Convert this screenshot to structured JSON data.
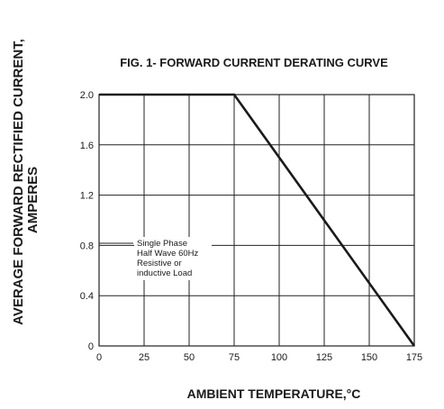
{
  "chart_data": {
    "type": "line",
    "title": "FIG. 1- FORWARD CURRENT DERATING CURVE",
    "xlabel": "AMBIENT TEMPERATURE,°C",
    "ylabel_lines": [
      "AVERAGE FORWARD RECTIFIED CURRENT,",
      "AMPERES"
    ],
    "xlim": [
      0,
      175
    ],
    "ylim": [
      0,
      2.0
    ],
    "x_ticks": [
      0,
      25,
      50,
      75,
      100,
      125,
      150,
      175
    ],
    "y_ticks": [
      0,
      0.4,
      0.8,
      1.2,
      1.6,
      2.0
    ],
    "x_tick_labels": [
      "0",
      "25",
      "50",
      "75",
      "100",
      "125",
      "150",
      "175"
    ],
    "y_tick_labels": [
      "0",
      "0.4",
      "0.8",
      "1.2",
      "1.6",
      "2.0"
    ],
    "grid": true,
    "series": [
      {
        "x": [
          0,
          75,
          175
        ],
        "y": [
          2.0,
          2.0,
          0
        ]
      }
    ],
    "annotation_lines": [
      "Single Phase",
      "Half Wave 60Hz",
      "Resistive or",
      "inductive Load"
    ]
  }
}
